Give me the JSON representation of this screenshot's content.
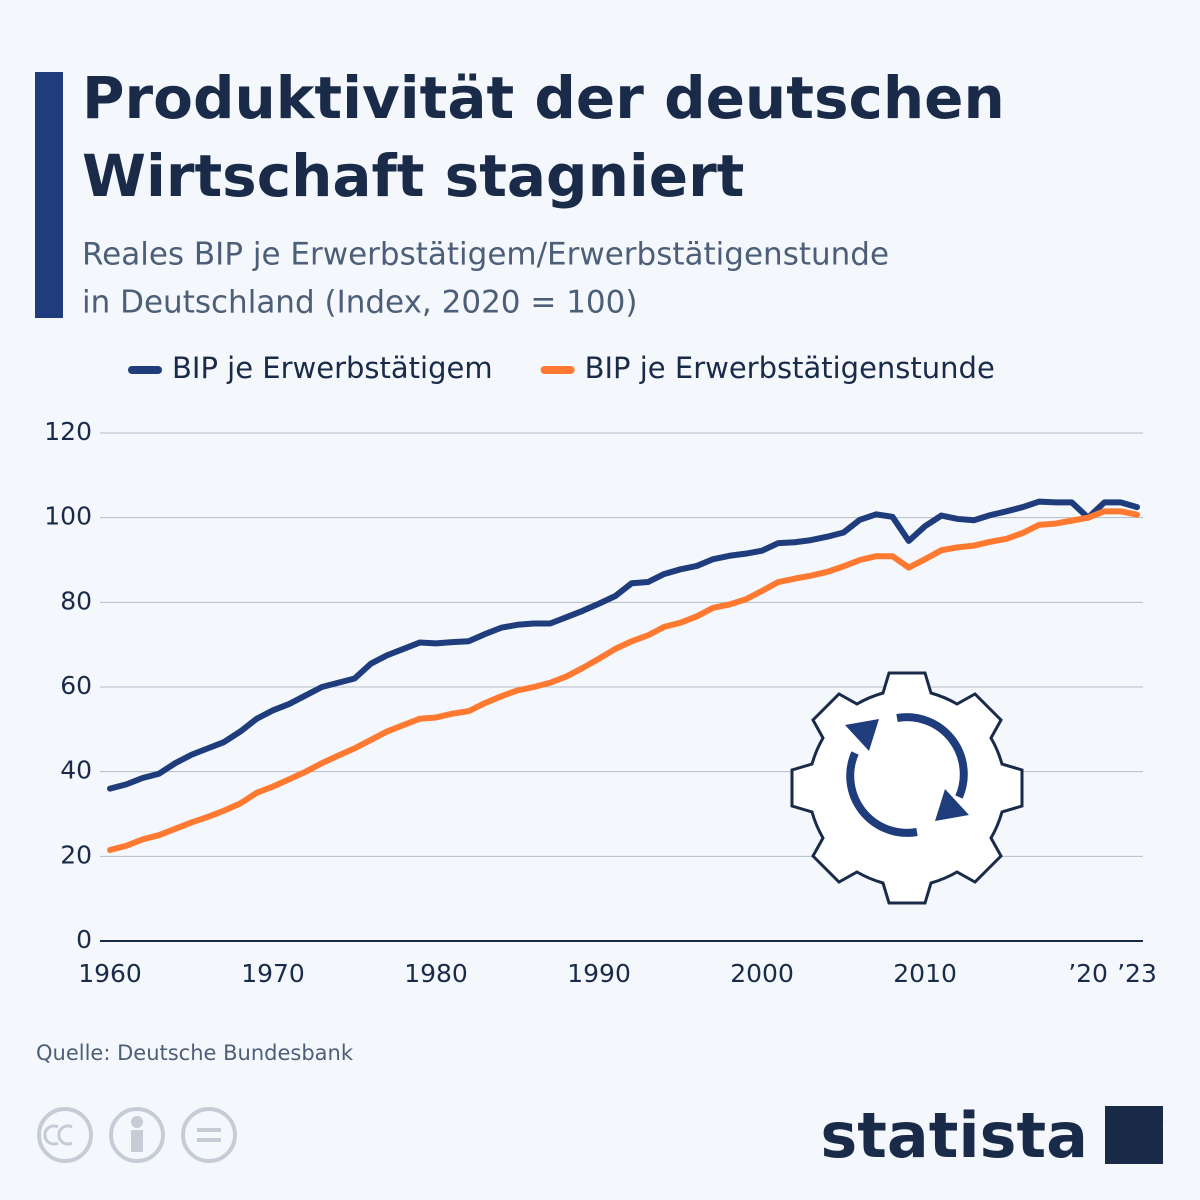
{
  "chart_data": {
    "type": "line",
    "title_lines": [
      "Produktivität der deutschen",
      "Wirtschaft stagniert"
    ],
    "subtitle_lines": [
      "Reales BIP je Erwerbstätigem/Erwerbstätigenstunde",
      "in Deutschland (Index, 2020 = 100)"
    ],
    "source": "Quelle: Deutsche Bundesbank",
    "brand": "statista",
    "legend": "top",
    "grid": true,
    "x": [
      1960,
      1961,
      1962,
      1963,
      1964,
      1965,
      1966,
      1967,
      1968,
      1969,
      1970,
      1971,
      1972,
      1973,
      1974,
      1975,
      1976,
      1977,
      1978,
      1979,
      1980,
      1981,
      1982,
      1983,
      1984,
      1985,
      1986,
      1987,
      1988,
      1989,
      1990,
      1991,
      1992,
      1993,
      1994,
      1995,
      1996,
      1997,
      1998,
      1999,
      2000,
      2001,
      2002,
      2003,
      2004,
      2005,
      2006,
      2007,
      2008,
      2009,
      2010,
      2011,
      2012,
      2013,
      2014,
      2015,
      2016,
      2017,
      2018,
      2019,
      2020,
      2021,
      2022,
      2023
    ],
    "xlim": [
      1960,
      2023
    ],
    "xticks": [
      1960,
      1970,
      1980,
      1990,
      2000,
      2010,
      {
        "value": 2020,
        "label": "’20"
      },
      {
        "value": 2023,
        "label": "’23"
      }
    ],
    "ylim": [
      0,
      120
    ],
    "yticks": [
      0,
      20,
      40,
      60,
      80,
      100,
      120
    ],
    "series": [
      {
        "name": "BIP je Erwerbstätigem",
        "color": "#1f3d7c",
        "values": [
          36,
          37,
          38.5,
          39.5,
          42,
          44,
          45.5,
          47,
          49.5,
          52.5,
          54.5,
          56,
          58,
          60,
          61,
          62,
          65.5,
          67.5,
          69,
          70.5,
          70.3,
          70.6,
          70.8,
          72.5,
          74,
          74.7,
          75,
          75,
          76.5,
          78,
          79.7,
          81.5,
          84.5,
          84.8,
          86.7,
          87.8,
          88.6,
          90.2,
          91,
          91.5,
          92.2,
          94,
          94.2,
          94.7,
          95.5,
          96.5,
          99.5,
          100.8,
          100.2,
          94.5,
          98,
          100.5,
          99.7,
          99.4,
          100.6,
          101.5,
          102.5,
          103.8,
          103.6,
          103.6,
          100,
          103.6,
          103.6,
          102.5
        ]
      },
      {
        "name": "BIP je Erwerbstätigenstunde",
        "color": "#ff7a30",
        "values": [
          21.5,
          22.5,
          24,
          25,
          26.5,
          28,
          29.3,
          30.8,
          32.5,
          35,
          36.5,
          38.2,
          40,
          42,
          43.8,
          45.5,
          47.5,
          49.5,
          51,
          52.5,
          52.8,
          53.7,
          54.3,
          56.2,
          57.8,
          59.2,
          60,
          61,
          62.5,
          64.5,
          66.7,
          69,
          70.8,
          72.2,
          74.2,
          75.2,
          76.7,
          78.7,
          79.5,
          80.7,
          82.7,
          84.8,
          85.6,
          86.3,
          87.2,
          88.5,
          90,
          90.9,
          90.9,
          88.2,
          90.2,
          92.3,
          93,
          93.4,
          94.3,
          95,
          96.4,
          98.3,
          98.6,
          99.3,
          100,
          101.5,
          101.5,
          100.7
        ]
      }
    ]
  }
}
